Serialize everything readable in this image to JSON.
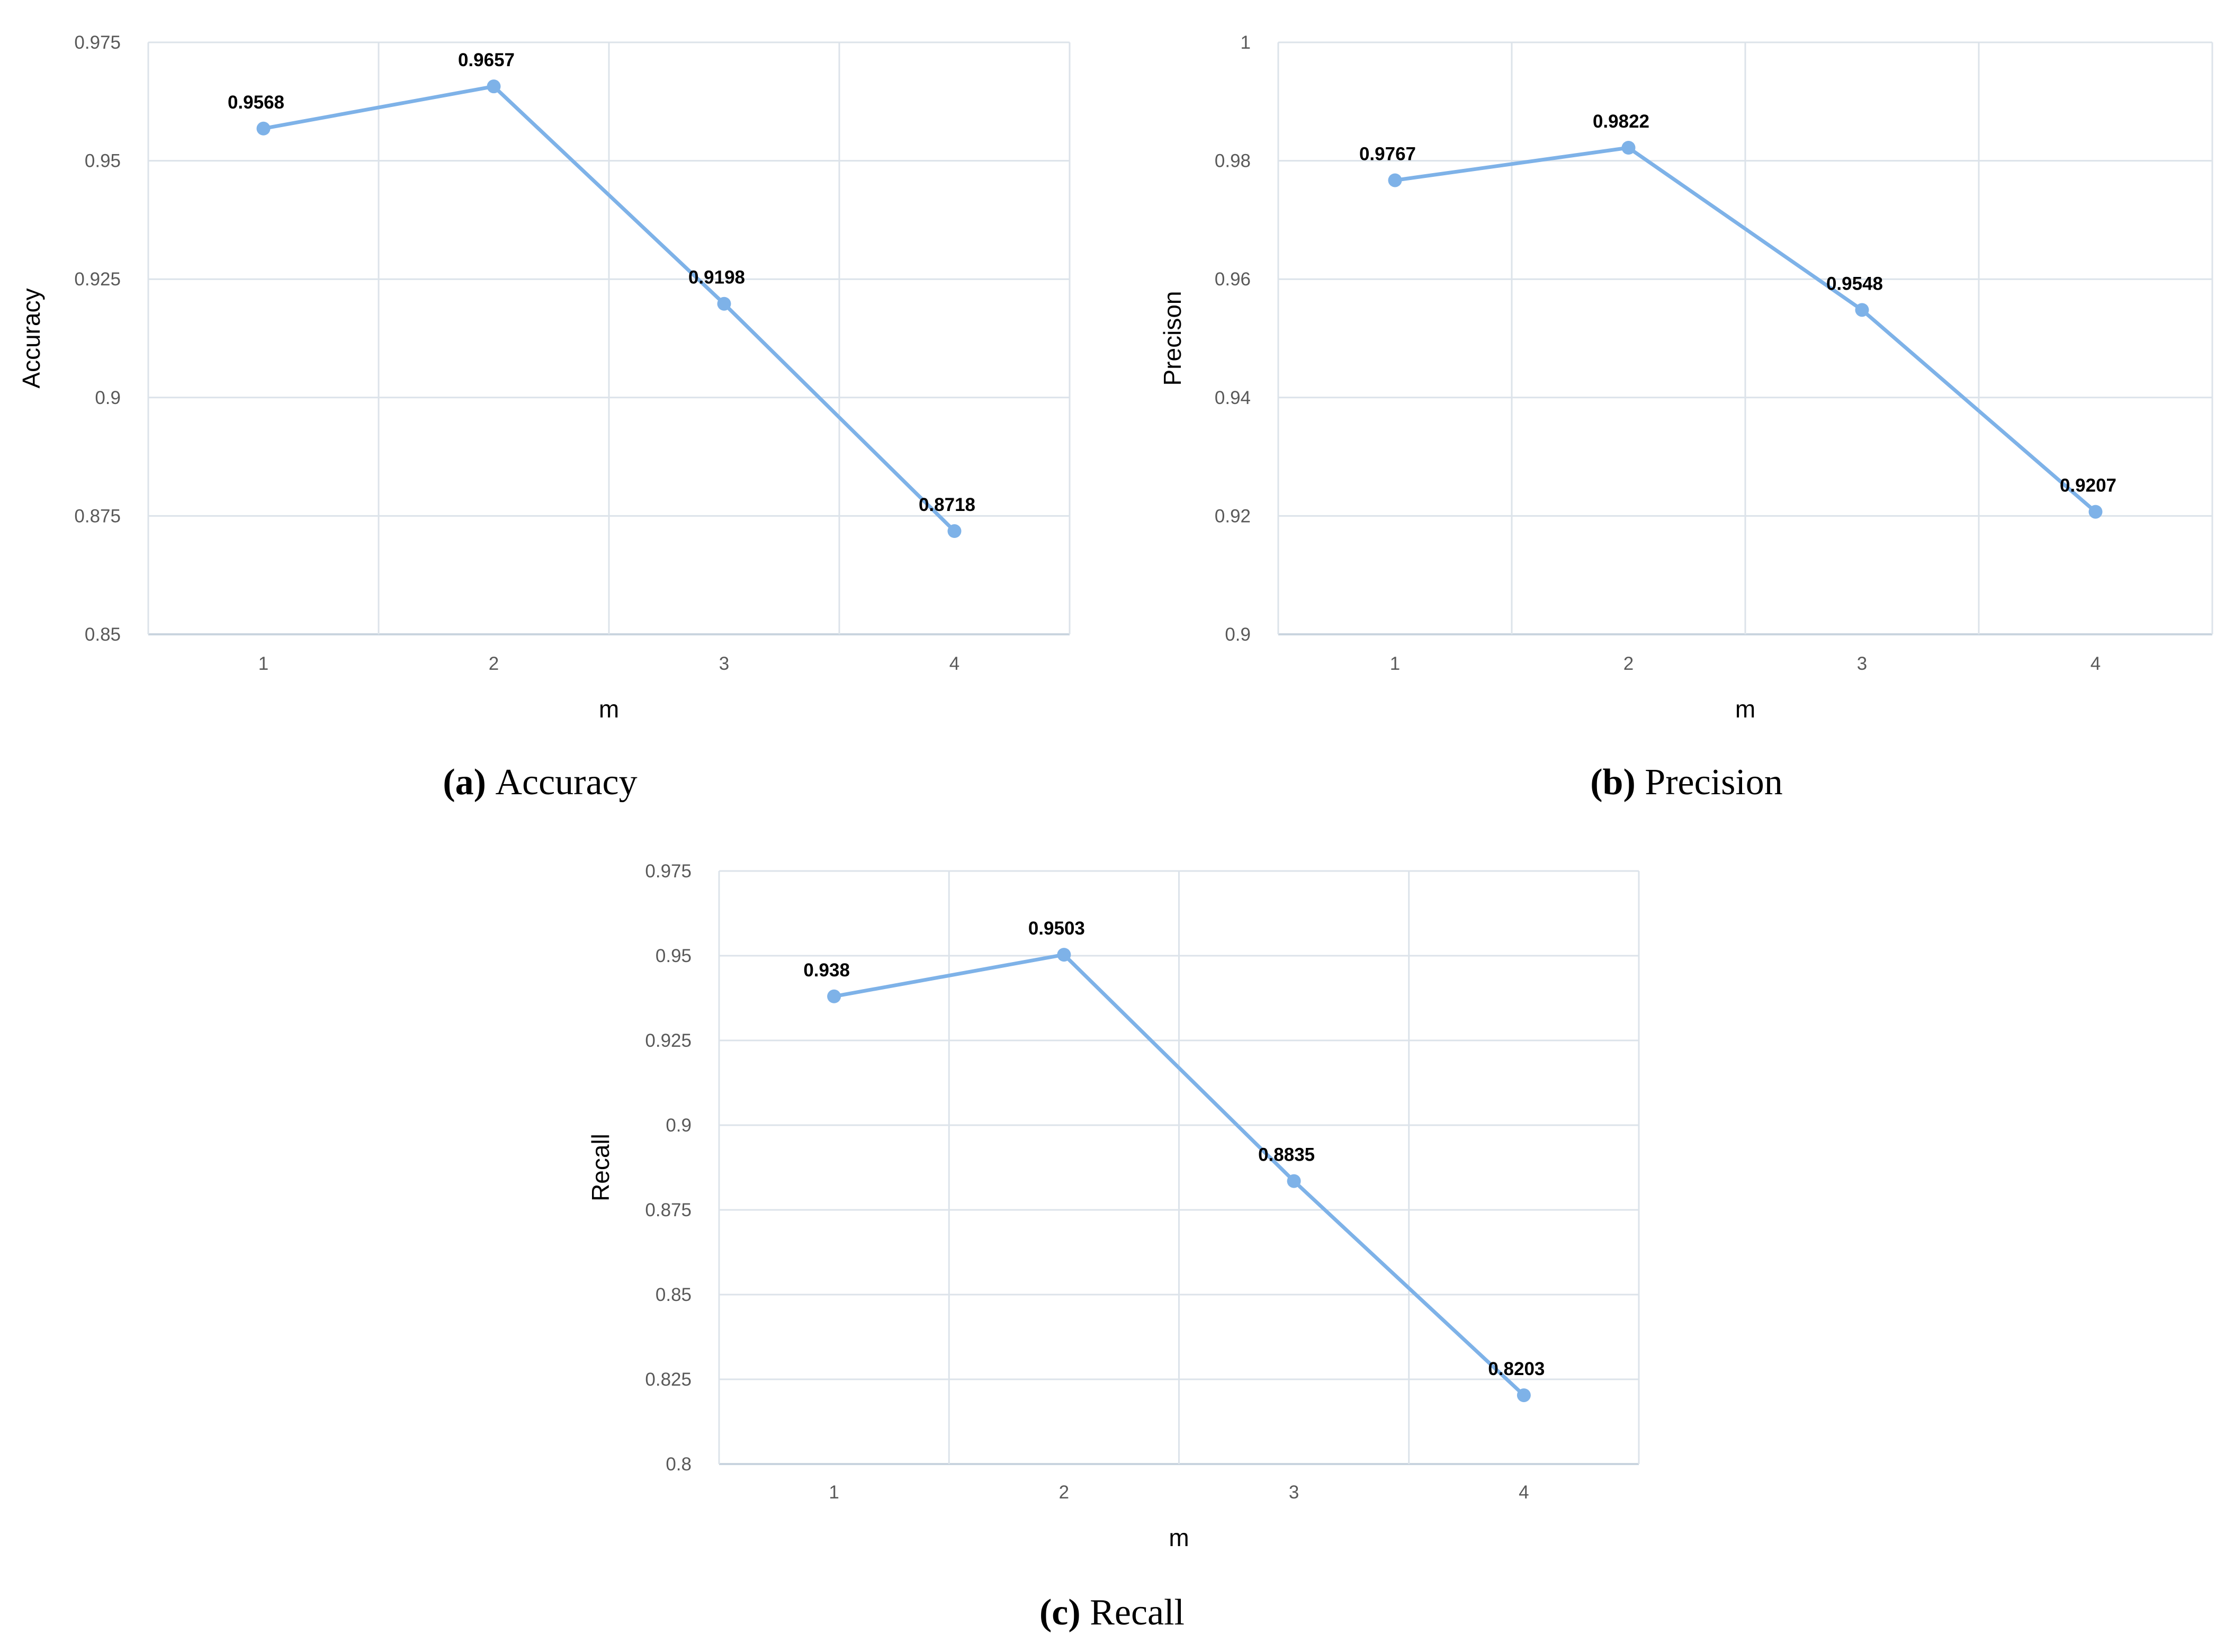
{
  "chart_data": [
    {
      "type": "line",
      "caption_letter": "(a)",
      "caption_text": "Accuracy",
      "xlabel": "m",
      "ylabel": "Accuracy",
      "x": [
        1,
        2,
        3,
        4
      ],
      "ylim": [
        0.85,
        0.975
      ],
      "yticks": [
        "0.85",
        "0.875",
        "0.9",
        "0.925",
        "0.95",
        "0.975"
      ],
      "grid": true,
      "color": "#7eb2e8",
      "series": [
        {
          "values": [
            0.9568,
            0.9657,
            0.9198,
            0.8718
          ],
          "labels": [
            "0.9568",
            "0.9657",
            "0.9198",
            "0.8718"
          ]
        }
      ]
    },
    {
      "type": "line",
      "caption_letter": "(b)",
      "caption_text": "Precision",
      "xlabel": "m",
      "ylabel": "Precison",
      "x": [
        1,
        2,
        3,
        4
      ],
      "ylim": [
        0.9,
        1
      ],
      "yticks": [
        "0.9",
        "0.92",
        "0.94",
        "0.96",
        "0.98",
        "1"
      ],
      "grid": true,
      "color": "#7eb2e8",
      "series": [
        {
          "values": [
            0.9767,
            0.9822,
            0.9548,
            0.9207
          ],
          "labels": [
            "0.9767",
            "0.9822",
            "0.9548",
            "0.9207"
          ]
        }
      ]
    },
    {
      "type": "line",
      "caption_letter": "(c)",
      "caption_text": "Recall",
      "xlabel": "m",
      "ylabel": "Recall",
      "x": [
        1,
        2,
        3,
        4
      ],
      "ylim": [
        0.8,
        0.975
      ],
      "yticks": [
        "0.8",
        "0.825",
        "0.85",
        "0.875",
        "0.9",
        "0.925",
        "0.95",
        "0.975"
      ],
      "grid": true,
      "color": "#7eb2e8",
      "series": [
        {
          "values": [
            0.938,
            0.9503,
            0.8835,
            0.8203
          ],
          "labels": [
            "0.938",
            "0.9503",
            "0.8835",
            "0.8203"
          ]
        }
      ]
    }
  ]
}
